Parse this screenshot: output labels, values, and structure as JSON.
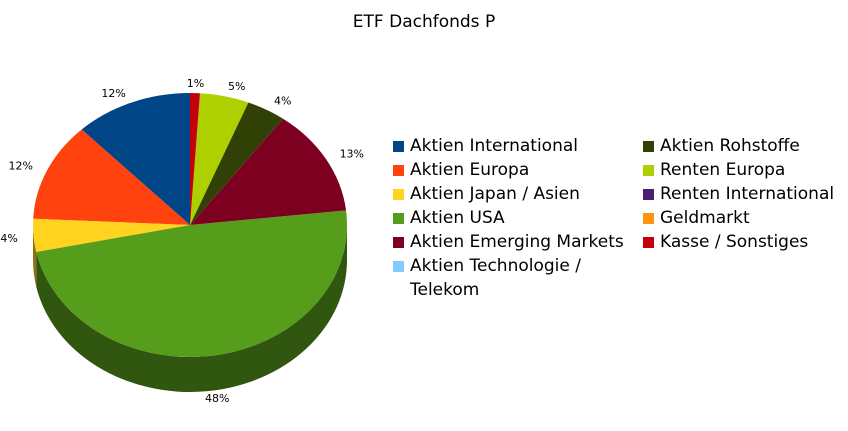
{
  "chart_data": {
    "type": "pie",
    "title": "ETF Dachfonds P",
    "categories": [
      "Aktien International",
      "Aktien Europa",
      "Aktien Japan / Asien",
      "Aktien USA",
      "Aktien Emerging Markets",
      "Aktien Technologie / Telekom",
      "Aktien Rohstoffe",
      "Renten Europa",
      "Renten International",
      "Geldmarkt",
      "Kasse / Sonstiges"
    ],
    "values": [
      12,
      12,
      4,
      48,
      13,
      0,
      4,
      5,
      0,
      0,
      1
    ],
    "value_labels": [
      "12%",
      "12%",
      "4%",
      "48%",
      "13%",
      null,
      "4%",
      "5%",
      null,
      null,
      "1%"
    ],
    "colors": [
      "#004586",
      "#ff420e",
      "#ffd320",
      "#579d1c",
      "#7e0021",
      "#83caff",
      "#314004",
      "#aecf00",
      "#4b1f6f",
      "#ff950e",
      "#c5000b"
    ],
    "legend": "right"
  }
}
